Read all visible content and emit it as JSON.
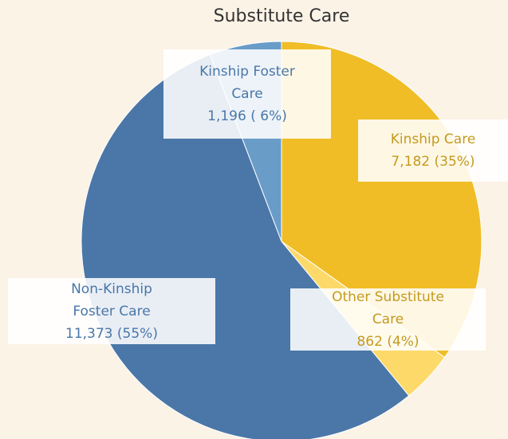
{
  "chart_data": {
    "type": "pie",
    "title": "Substitute Care",
    "categories": [
      "Kinship Care",
      "Other Substitute Care",
      "Non-Kinship Foster Care",
      "Kinship Foster Care"
    ],
    "values": [
      7182,
      862,
      11373,
      1196
    ],
    "value_labels": [
      "7,182",
      "862",
      "11,373",
      "1,196"
    ],
    "percents": [
      35,
      4,
      55,
      6
    ],
    "percent_labels": [
      "(35%)",
      "(4%)",
      "(55%)",
      "( 6%)"
    ],
    "colors": [
      "#f0bd27",
      "#fdd96a",
      "#4a77a8",
      "#6a9cc8"
    ],
    "label_colors": [
      "#c49a1e",
      "#c49a1e",
      "#4a77a8",
      "#4a77a8"
    ]
  }
}
